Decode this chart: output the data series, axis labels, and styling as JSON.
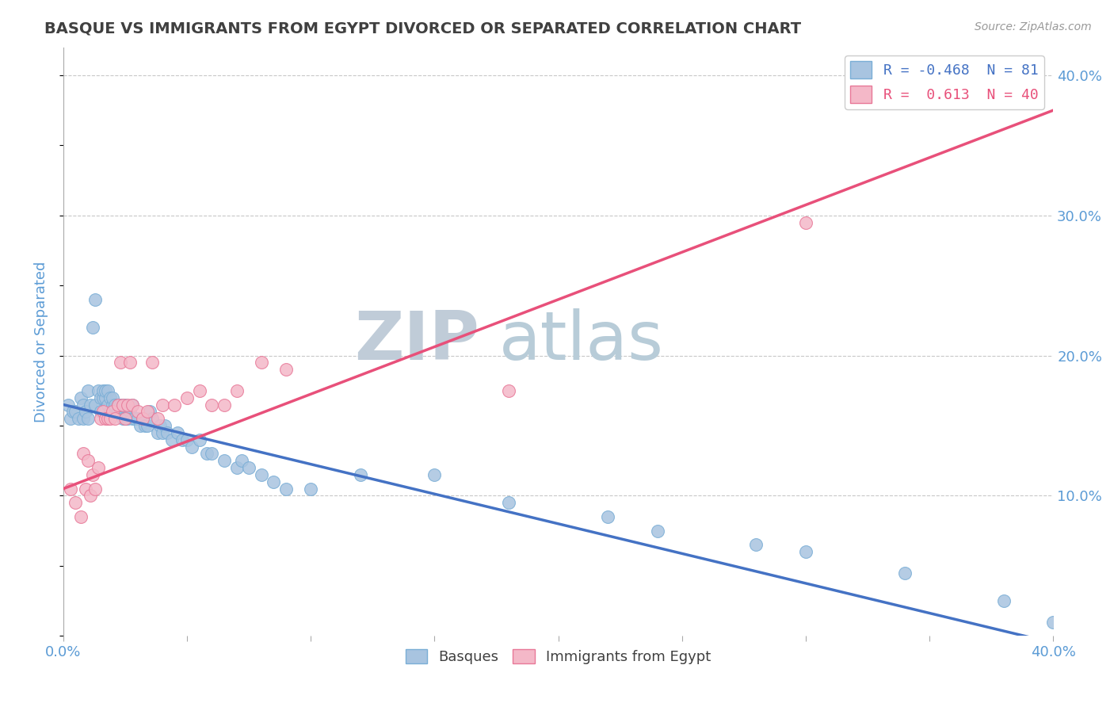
{
  "title": "BASQUE VS IMMIGRANTS FROM EGYPT DIVORCED OR SEPARATED CORRELATION CHART",
  "source_text": "Source: ZipAtlas.com",
  "ylabel": "Divorced or Separated",
  "xmin": 0.0,
  "xmax": 0.4,
  "ymin": 0.0,
  "ymax": 0.42,
  "xticks": [
    0.0,
    0.05,
    0.1,
    0.15,
    0.2,
    0.25,
    0.3,
    0.35,
    0.4
  ],
  "yticks_right": [
    0.1,
    0.2,
    0.3,
    0.4
  ],
  "ytick_labels_right": [
    "10.0%",
    "20.0%",
    "30.0%",
    "40.0%"
  ],
  "legend_blue_r": "-0.468",
  "legend_blue_n": "81",
  "legend_pink_r": "0.613",
  "legend_pink_n": "40",
  "blue_color": "#a8c4e0",
  "blue_edge_color": "#7aaed6",
  "pink_color": "#f4b8c8",
  "pink_edge_color": "#e87898",
  "blue_line_color": "#4472c4",
  "pink_line_color": "#e8507a",
  "watermark_zip_color": "#c8d8e8",
  "watermark_atlas_color": "#b0c8d8",
  "title_color": "#404040",
  "axis_label_color": "#5b9bd5",
  "background_color": "#ffffff",
  "grid_color": "#c8c8c8",
  "blue_line_start_y": 0.165,
  "blue_line_end_y": -0.005,
  "pink_line_start_y": 0.105,
  "pink_line_end_y": 0.375,
  "blue_x": [
    0.002,
    0.003,
    0.004,
    0.005,
    0.006,
    0.007,
    0.008,
    0.008,
    0.009,
    0.01,
    0.01,
    0.011,
    0.012,
    0.013,
    0.013,
    0.014,
    0.015,
    0.015,
    0.016,
    0.016,
    0.017,
    0.017,
    0.018,
    0.018,
    0.019,
    0.019,
    0.02,
    0.02,
    0.021,
    0.022,
    0.022,
    0.023,
    0.023,
    0.024,
    0.024,
    0.025,
    0.025,
    0.026,
    0.027,
    0.028,
    0.028,
    0.029,
    0.03,
    0.031,
    0.032,
    0.033,
    0.034,
    0.035,
    0.036,
    0.038,
    0.039,
    0.04,
    0.041,
    0.042,
    0.044,
    0.046,
    0.048,
    0.05,
    0.052,
    0.055,
    0.058,
    0.06,
    0.065,
    0.07,
    0.072,
    0.075,
    0.08,
    0.085,
    0.09,
    0.1,
    0.12,
    0.15,
    0.18,
    0.22,
    0.24,
    0.28,
    0.3,
    0.34,
    0.38,
    0.4
  ],
  "blue_y": [
    0.165,
    0.155,
    0.16,
    0.16,
    0.155,
    0.17,
    0.155,
    0.165,
    0.16,
    0.175,
    0.155,
    0.165,
    0.22,
    0.24,
    0.165,
    0.175,
    0.16,
    0.17,
    0.17,
    0.175,
    0.17,
    0.175,
    0.165,
    0.175,
    0.16,
    0.17,
    0.165,
    0.17,
    0.165,
    0.16,
    0.165,
    0.16,
    0.165,
    0.155,
    0.165,
    0.155,
    0.165,
    0.155,
    0.16,
    0.155,
    0.165,
    0.155,
    0.155,
    0.15,
    0.155,
    0.15,
    0.15,
    0.16,
    0.155,
    0.145,
    0.15,
    0.145,
    0.15,
    0.145,
    0.14,
    0.145,
    0.14,
    0.14,
    0.135,
    0.14,
    0.13,
    0.13,
    0.125,
    0.12,
    0.125,
    0.12,
    0.115,
    0.11,
    0.105,
    0.105,
    0.115,
    0.115,
    0.095,
    0.085,
    0.075,
    0.065,
    0.06,
    0.045,
    0.025,
    0.01
  ],
  "pink_x": [
    0.003,
    0.005,
    0.007,
    0.008,
    0.009,
    0.01,
    0.011,
    0.012,
    0.013,
    0.014,
    0.015,
    0.016,
    0.017,
    0.018,
    0.019,
    0.02,
    0.021,
    0.022,
    0.023,
    0.024,
    0.025,
    0.026,
    0.027,
    0.028,
    0.03,
    0.032,
    0.034,
    0.036,
    0.038,
    0.04,
    0.045,
    0.05,
    0.055,
    0.06,
    0.065,
    0.07,
    0.08,
    0.09,
    0.18,
    0.3
  ],
  "pink_y": [
    0.105,
    0.095,
    0.085,
    0.13,
    0.105,
    0.125,
    0.1,
    0.115,
    0.105,
    0.12,
    0.155,
    0.16,
    0.155,
    0.155,
    0.155,
    0.16,
    0.155,
    0.165,
    0.195,
    0.165,
    0.155,
    0.165,
    0.195,
    0.165,
    0.16,
    0.155,
    0.16,
    0.195,
    0.155,
    0.165,
    0.165,
    0.17,
    0.175,
    0.165,
    0.165,
    0.175,
    0.195,
    0.19,
    0.175,
    0.295
  ]
}
